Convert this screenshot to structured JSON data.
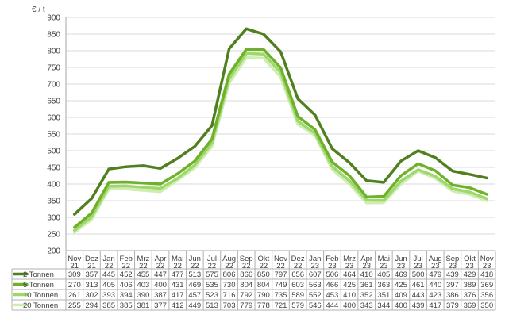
{
  "chart_data": {
    "type": "line",
    "ylabel": "€ / t",
    "ylim": [
      200,
      900
    ],
    "yticks": [
      200,
      250,
      300,
      350,
      400,
      450,
      500,
      550,
      600,
      650,
      700,
      750,
      800,
      850,
      900
    ],
    "grid": true,
    "legend": "data-table",
    "categories": [
      {
        "m": "Nov",
        "y": "21"
      },
      {
        "m": "Dez",
        "y": "21"
      },
      {
        "m": "Jan",
        "y": "22"
      },
      {
        "m": "Feb",
        "y": "22"
      },
      {
        "m": "Mrz",
        "y": "22"
      },
      {
        "m": "Apr",
        "y": "22"
      },
      {
        "m": "Mai",
        "y": "22"
      },
      {
        "m": "Jun",
        "y": "22"
      },
      {
        "m": "Jul",
        "y": "22"
      },
      {
        "m": "Aug",
        "y": "22"
      },
      {
        "m": "Sep",
        "y": "22"
      },
      {
        "m": "Okt",
        "y": "22"
      },
      {
        "m": "Nov",
        "y": "22"
      },
      {
        "m": "Dez",
        "y": "22"
      },
      {
        "m": "Jan",
        "y": "23"
      },
      {
        "m": "Feb",
        "y": "23"
      },
      {
        "m": "Mrz",
        "y": "23"
      },
      {
        "m": "Apr",
        "y": "23"
      },
      {
        "m": "Mai",
        "y": "23"
      },
      {
        "m": "Jun",
        "y": "23"
      },
      {
        "m": "Jul",
        "y": "23"
      },
      {
        "m": "Aug",
        "y": "23"
      },
      {
        "m": "Sep",
        "y": "23"
      },
      {
        "m": "Okt",
        "y": "23"
      },
      {
        "m": "Nov",
        "y": "23"
      }
    ],
    "series": [
      {
        "name": "2 Tonnen",
        "color": "#4f7f1f",
        "values": [
          309,
          357,
          445,
          452,
          455,
          447,
          477,
          513,
          575,
          806,
          866,
          850,
          797,
          656,
          607,
          506,
          464,
          410,
          405,
          469,
          500,
          479,
          439,
          429,
          418
        ]
      },
      {
        "name": "5 Tonnen",
        "color": "#6fb12a",
        "values": [
          270,
          313,
          405,
          406,
          403,
          400,
          431,
          469,
          535,
          730,
          804,
          804,
          749,
          603,
          563,
          466,
          425,
          361,
          363,
          425,
          461,
          440,
          397,
          389,
          369
        ]
      },
      {
        "name": "10 Tonnen",
        "color": "#9ed76a",
        "values": [
          261,
          302,
          393,
          394,
          390,
          387,
          417,
          457,
          523,
          716,
          792,
          790,
          735,
          589,
          552,
          453,
          410,
          352,
          351,
          409,
          443,
          423,
          386,
          376,
          356
        ]
      },
      {
        "name": "20 Tonnen",
        "color": "#cdeeb0",
        "values": [
          255,
          294,
          385,
          385,
          381,
          377,
          412,
          449,
          513,
          703,
          779,
          778,
          721,
          579,
          546,
          444,
          400,
          343,
          344,
          400,
          439,
          417,
          379,
          369,
          350
        ]
      }
    ]
  }
}
